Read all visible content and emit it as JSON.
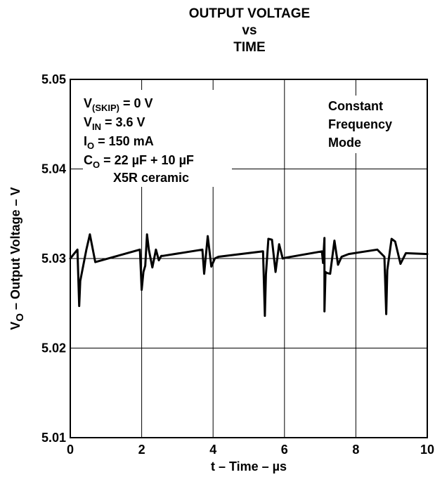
{
  "chart_data": {
    "type": "line",
    "title": [
      "OUTPUT VOLTAGE",
      "vs",
      "TIME"
    ],
    "xlabel": "t – Time – µs",
    "ylabel": {
      "main": "V",
      "sub": "O",
      "rest": " – Output Voltage – V"
    },
    "xlim": [
      0,
      10
    ],
    "ylim": [
      5.01,
      5.05
    ],
    "xticks": [
      "0",
      "2",
      "4",
      "6",
      "8",
      "10"
    ],
    "yticks": [
      "5.01",
      "5.02",
      "5.03",
      "5.04",
      "5.05"
    ],
    "grid": true,
    "conditions": {
      "line1": {
        "main": "V",
        "sub": "(SKIP)",
        "rest": " = 0 V"
      },
      "line2": {
        "main": "V",
        "sub": "IN",
        "rest": " = 3.6 V"
      },
      "line3": {
        "main": "I",
        "sub": "O",
        "rest": " = 150 mA"
      },
      "line4": {
        "main": "C",
        "sub": "O",
        "rest": " = 22 µF + 10 µF"
      },
      "line5": "X5R ceramic"
    },
    "mode_note": [
      "Constant",
      "Frequency",
      "Mode"
    ],
    "series": [
      {
        "color": "#000000",
        "x": [
          0.0,
          0.2,
          0.25,
          0.28,
          0.45,
          0.55,
          0.7,
          1.95,
          2.0,
          2.05,
          2.1,
          2.15,
          2.2,
          2.3,
          2.4,
          2.48,
          2.55,
          2.6,
          3.7,
          3.75,
          3.85,
          3.95,
          4.05,
          4.15,
          5.4,
          5.45,
          5.48,
          5.55,
          5.65,
          5.75,
          5.85,
          5.95,
          6.05,
          7.05,
          7.08,
          7.12,
          7.12,
          7.15,
          7.18,
          7.28,
          7.4,
          7.5,
          7.6,
          7.8,
          8.6,
          8.8,
          8.85,
          8.88,
          9.0,
          9.1,
          9.25,
          9.4,
          10.0
        ],
        "y": [
          5.03,
          5.031,
          5.0247,
          5.0275,
          5.031,
          5.0327,
          5.0296,
          5.031,
          5.0265,
          5.0285,
          5.0292,
          5.0327,
          5.031,
          5.029,
          5.031,
          5.0298,
          5.0303,
          5.0303,
          5.031,
          5.0283,
          5.0325,
          5.0291,
          5.03,
          5.0302,
          5.0308,
          5.0236,
          5.0282,
          5.0322,
          5.0321,
          5.0285,
          5.0316,
          5.03,
          5.0301,
          5.0308,
          5.0295,
          5.0323,
          5.0241,
          5.0285,
          5.0284,
          5.0283,
          5.032,
          5.0293,
          5.0302,
          5.0305,
          5.031,
          5.0302,
          5.0238,
          5.0287,
          5.0322,
          5.0319,
          5.0294,
          5.0306,
          5.0305
        ]
      }
    ]
  }
}
